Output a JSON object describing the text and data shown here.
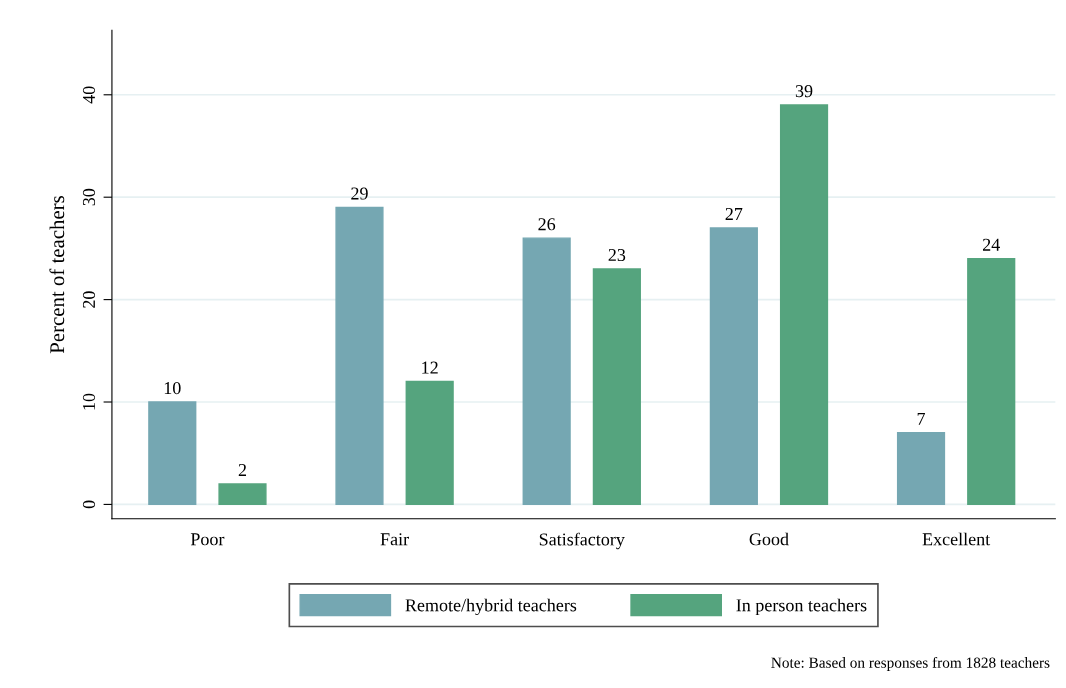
{
  "chart_data": {
    "type": "bar",
    "ylabel": "Percent of teachers",
    "categories": [
      "Poor",
      "Fair",
      "Satisfactory",
      "Good",
      "Excellent"
    ],
    "series": [
      {
        "name": "Remote/hybrid teachers",
        "color": "#75a7b2",
        "values": [
          10,
          29,
          26,
          27,
          7
        ]
      },
      {
        "name": "In person teachers",
        "color": "#55a47e",
        "values": [
          2,
          12,
          23,
          39,
          24
        ]
      }
    ],
    "ylim": [
      -1.4,
      46.3
    ],
    "yticks": [
      0,
      10,
      20,
      30,
      40
    ],
    "grid": "y",
    "legend": "bottom",
    "data_labels": true,
    "annotations": [
      "Note: Based on responses from 1828 teachers"
    ]
  }
}
